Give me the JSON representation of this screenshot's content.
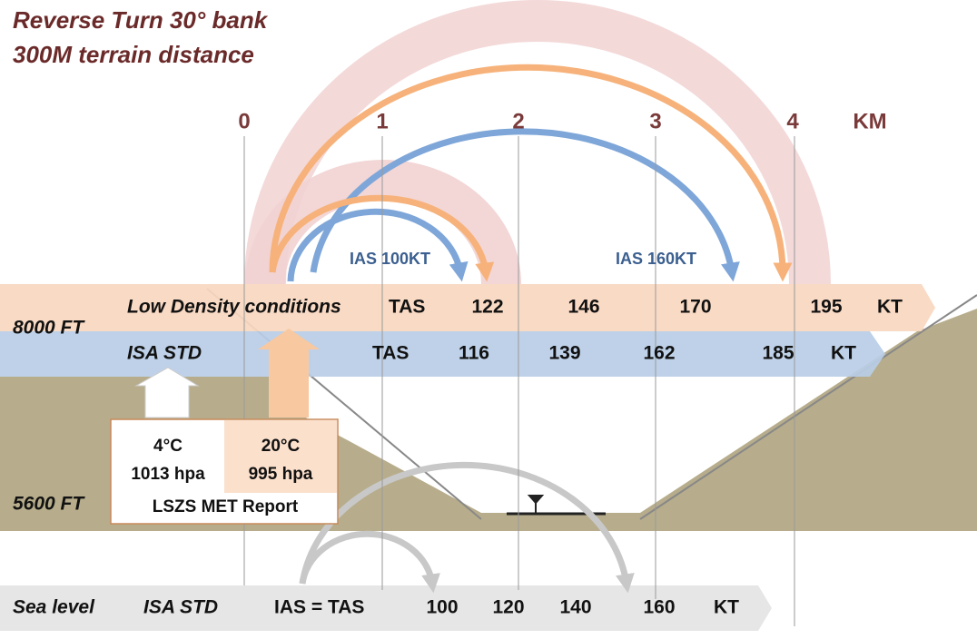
{
  "title": {
    "line1": "Reverse Turn  30° bank",
    "line2": "300M terrain distance"
  },
  "km_scale": {
    "ticks": [
      "0",
      "1",
      "2",
      "3",
      "4"
    ],
    "unit": "KM"
  },
  "arcs": {
    "small": "IAS 100KT",
    "large": "IAS 160KT"
  },
  "low_density": {
    "altitude": "8000 FT",
    "label": "Low Density conditions",
    "tas": "TAS",
    "values": [
      "122",
      "146",
      "170",
      "195"
    ],
    "unit": "KT"
  },
  "isa": {
    "label": "ISA STD",
    "tas": "TAS",
    "values": [
      "116",
      "139",
      "162",
      "185"
    ],
    "unit": "KT"
  },
  "met_report": {
    "isa_temp": "4°C",
    "isa_pressure": "1013 hpa",
    "low_temp": "20°C",
    "low_pressure": "995 hpa",
    "caption": "LSZS MET Report"
  },
  "field_altitude": "5600 FT",
  "sea_level": {
    "label": "Sea level",
    "isa": "ISA STD",
    "ias": "IAS = TAS",
    "values": [
      "100",
      "120",
      "140",
      "160"
    ],
    "unit": "KT"
  }
}
